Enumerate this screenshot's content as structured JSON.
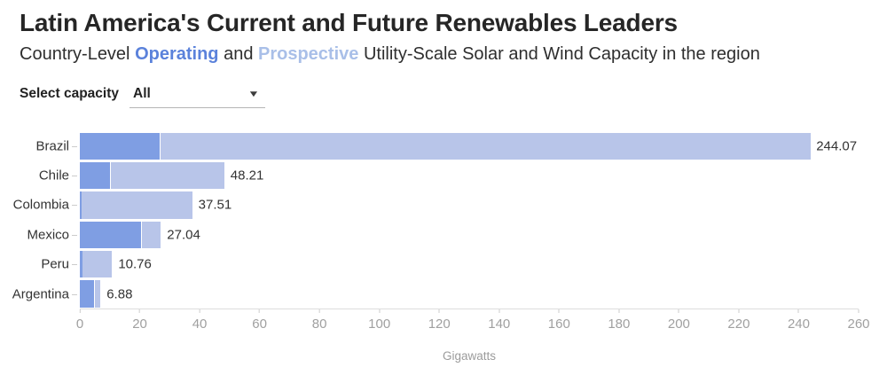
{
  "header": {
    "title": "Latin America's Current and Future Renewables Leaders",
    "subtitle_parts": {
      "p0": "Country-Level ",
      "operating": "Operating",
      "p1": " and ",
      "prospective": "Prospective",
      "p2": " Utility-Scale Solar and Wind Capacity in the region"
    }
  },
  "controls": {
    "label": "Select capacity",
    "dropdown_value": "All",
    "dropdown_icon": "caret-down-icon"
  },
  "colors": {
    "operating_bar": "#7f9ee3",
    "prospective_bar": "#b8c5e9",
    "operating_text": "#5b82db",
    "prospective_text": "#a9bfe8",
    "axis_line": "#dddddd",
    "axis_text": "#a0a0a0",
    "value_text": "#333333"
  },
  "chart_data": {
    "type": "bar",
    "orientation": "horizontal",
    "stacked": true,
    "title": "Latin America's Current and Future Renewables Leaders",
    "subtitle": "Country-Level Operating and Prospective Utility-Scale Solar and Wind Capacity in the region",
    "categories": [
      "Brazil",
      "Chile",
      "Colombia",
      "Mexico",
      "Peru",
      "Argentina"
    ],
    "series": [
      {
        "name": "Operating",
        "values": [
          26.6,
          10.0,
          0.5,
          20.4,
          1.0,
          4.6
        ]
      },
      {
        "name": "Prospective",
        "values": [
          217.47,
          38.21,
          37.01,
          6.64,
          9.76,
          2.28
        ]
      }
    ],
    "totals": [
      244.07,
      48.21,
      37.51,
      27.04,
      10.76,
      6.88
    ],
    "total_labels": [
      "244.07",
      "48.21",
      "37.51",
      "27.04",
      "10.76",
      "6.88"
    ],
    "xlabel": "Gigawatts",
    "ylabel": "",
    "xlim": [
      0,
      260
    ],
    "xticks": [
      0,
      20,
      40,
      60,
      80,
      100,
      120,
      140,
      160,
      180,
      200,
      220,
      240,
      260
    ],
    "grid": false,
    "legend_position": "in-subtitle"
  }
}
